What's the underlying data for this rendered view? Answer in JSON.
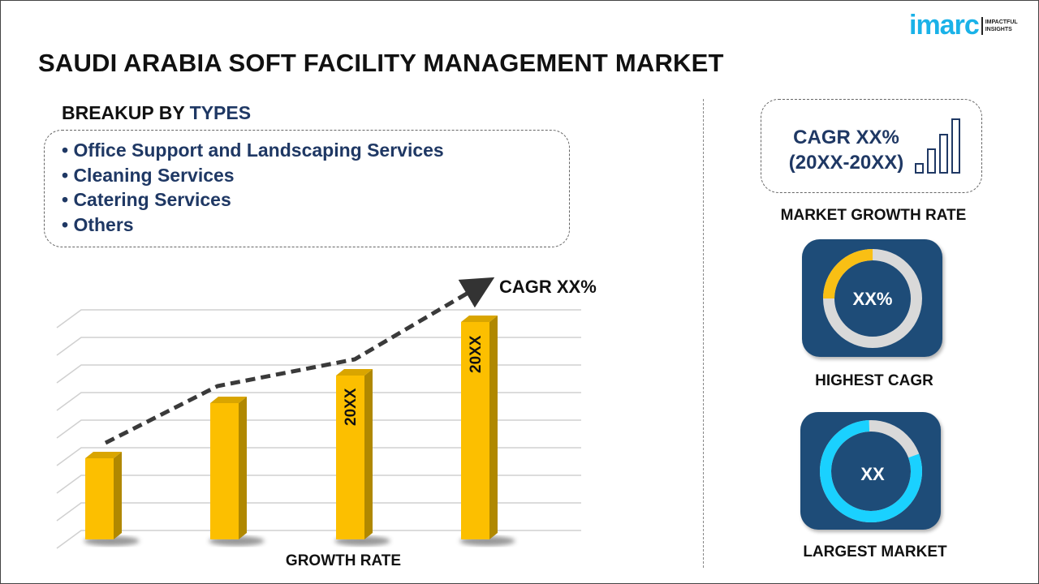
{
  "title": "SAUDI ARABIA SOFT FACILITY MANAGEMENT MARKET",
  "logo": {
    "word": "imarc",
    "tagline_1": "IMPACTFUL",
    "tagline_2": "INSIGHTS"
  },
  "breakup": {
    "prefix": "BREAKUP BY ",
    "accent": "TYPES",
    "items": [
      "• Office Support and Landscaping Services",
      "• Cleaning Services",
      "• Catering Services",
      "• Others"
    ]
  },
  "chart": {
    "cagr_label": "CAGR XX%",
    "bar_labels": [
      "",
      "",
      "20XX",
      "20XX"
    ],
    "xlabel": "GROWTH RATE"
  },
  "right": {
    "cagr_line1": "CAGR XX%",
    "cagr_line2": "(20XX-20XX)",
    "market_growth_label": "MARKET GROWTH RATE",
    "highest_value": "XX%",
    "highest_label": "HIGHEST CAGR",
    "largest_value": "XX",
    "largest_label": "LARGEST MARKET"
  },
  "colors": {
    "navy": "#1f3864",
    "tile": "#1e4c78",
    "bar": "#fcbf00",
    "cyan": "#1ad1ff",
    "donut_yellow": "#f9bf14",
    "brand": "#1ab2e8"
  }
}
